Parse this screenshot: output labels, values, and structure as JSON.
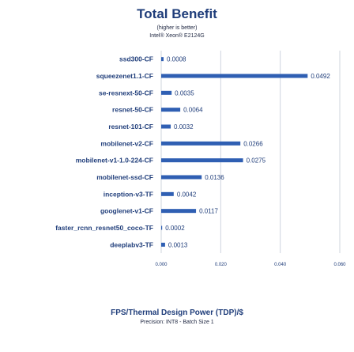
{
  "chart_data": {
    "type": "bar",
    "orientation": "horizontal",
    "title": "Total Benefit",
    "subtitle_lines": [
      "(higher is better)",
      "Intel® Xeon® E2124G"
    ],
    "xlabel": "FPS/Thermal Design Power (TDP)/$",
    "precision_note": "Precision: INT8 - Batch Size 1",
    "categories": [
      "ssd300-CF",
      "squeezenet1.1-CF",
      "se-resnext-50-CF",
      "resnet-50-CF",
      "resnet-101-CF",
      "mobilenet-v2-CF",
      "mobilenet-v1-1.0-224-CF",
      "mobilenet-ssd-CF",
      "inception-v3-TF",
      "googlenet-v1-CF",
      "faster_rcnn_resnet50_coco-TF",
      "deeplabv3-TF"
    ],
    "values": [
      0.0008,
      0.0492,
      0.0035,
      0.0064,
      0.0032,
      0.0266,
      0.0275,
      0.0136,
      0.0042,
      0.0117,
      0.0002,
      0.0013
    ],
    "value_labels": [
      "0.0008",
      "0.0492",
      "0.0035",
      "0.0064",
      "0.0032",
      "0.0266",
      "0.0275",
      "0.0136",
      "0.0042",
      "0.0117",
      "0.0002",
      "0.0013"
    ],
    "xlim": [
      0,
      0.06
    ],
    "xticks": [
      "0.000",
      "0.020",
      "0.040",
      "0.060"
    ],
    "grid": true,
    "bar_color": "#2f5fb3",
    "grid_color": "#cfd4de"
  }
}
